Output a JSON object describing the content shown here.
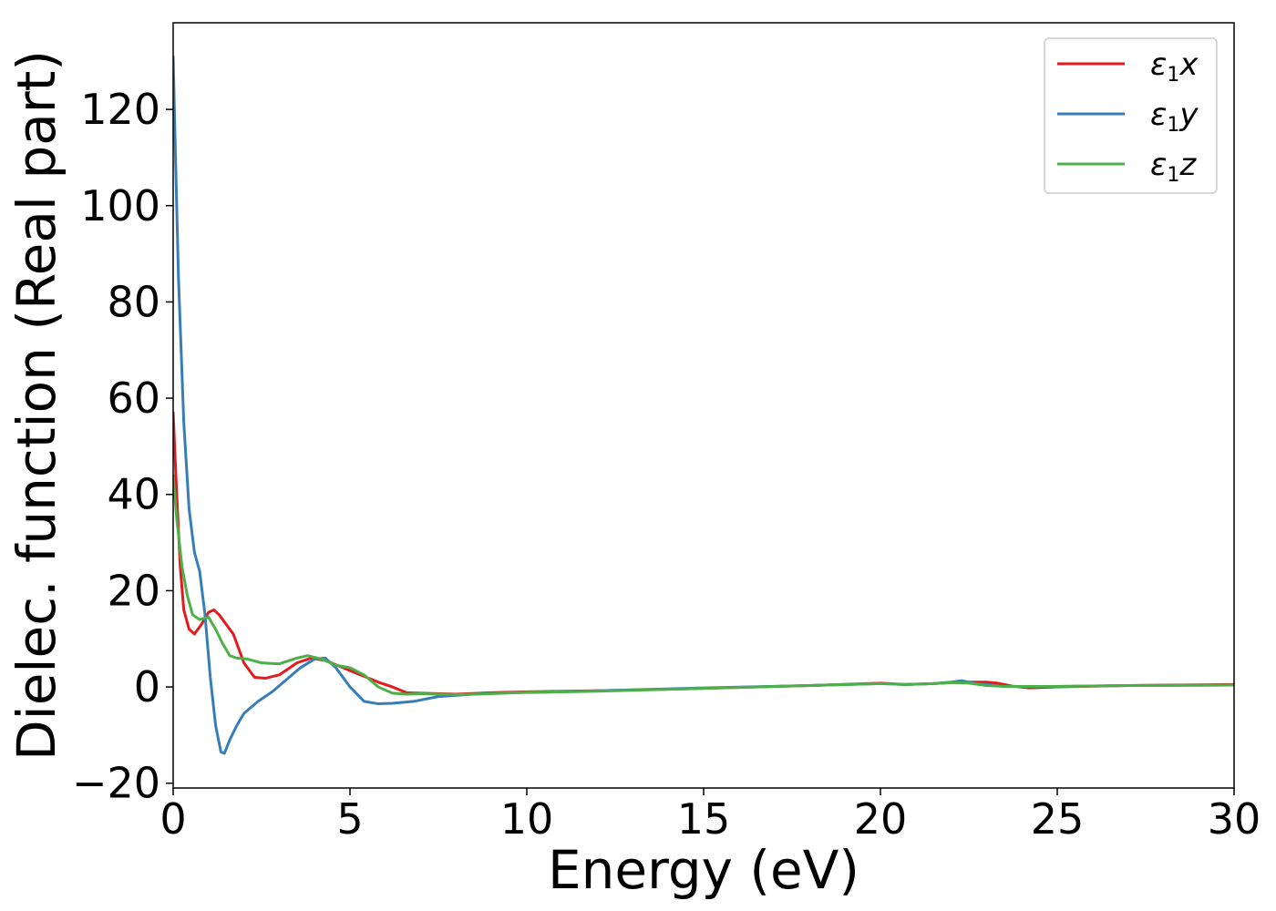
{
  "chart_data": {
    "type": "line",
    "xlabel": "Energy (eV)",
    "ylabel": "Dielec. function (Real part)",
    "xlim": [
      0,
      30
    ],
    "ylim": [
      -21,
      138
    ],
    "xticks": [
      0,
      5,
      10,
      15,
      20,
      25,
      30
    ],
    "yticks": [
      -20,
      0,
      20,
      40,
      60,
      80,
      100,
      120
    ],
    "ytick_labels": [
      "−20",
      "0",
      "20",
      "40",
      "60",
      "80",
      "100",
      "120"
    ],
    "grid": false,
    "legend_position": "top-right",
    "series": [
      {
        "name": "ε₁x",
        "legend": {
          "base": "ε",
          "sub": "1",
          "suffix": "x"
        },
        "color": "#e41a1c",
        "x": [
          0,
          0.1,
          0.2,
          0.3,
          0.45,
          0.6,
          0.8,
          1.0,
          1.15,
          1.3,
          1.45,
          1.7,
          2.0,
          2.3,
          2.6,
          3.0,
          3.5,
          3.9,
          4.3,
          4.8,
          5.3,
          5.8,
          6.2,
          6.6,
          7.0,
          8.0,
          9.0,
          10.0,
          12.0,
          15.0,
          18.0,
          20.0,
          20.7,
          21.5,
          22.0,
          22.5,
          23.0,
          23.3,
          23.7,
          24.2,
          25.0,
          27.0,
          30.0
        ],
        "y": [
          57,
          40,
          25,
          16,
          12,
          11,
          13,
          15.5,
          16,
          15,
          13.5,
          11,
          5,
          2,
          1.8,
          2.5,
          5,
          6,
          5.5,
          4,
          2.5,
          1,
          0,
          -1.2,
          -1.3,
          -1.5,
          -1.2,
          -1.0,
          -0.8,
          -0.3,
          0.3,
          0.8,
          0.5,
          0.7,
          0.9,
          1.0,
          1.0,
          0.8,
          0.2,
          -0.2,
          0.0,
          0.3,
          0.5
        ]
      },
      {
        "name": "ε₁y",
        "legend": {
          "base": "ε",
          "sub": "1",
          "suffix": "y"
        },
        "color": "#377eb8",
        "x": [
          0,
          0.05,
          0.15,
          0.3,
          0.45,
          0.6,
          0.75,
          0.9,
          1.05,
          1.2,
          1.35,
          1.45,
          1.6,
          1.8,
          2.0,
          2.4,
          2.8,
          3.2,
          3.6,
          4.0,
          4.3,
          4.6,
          5.0,
          5.4,
          5.8,
          6.2,
          6.8,
          7.5,
          8.5,
          9.5,
          10.5,
          12.0,
          15.0,
          18.0,
          20.0,
          20.7,
          21.5,
          22.0,
          22.3,
          22.7,
          23.0,
          23.5,
          25.0,
          27.0,
          30.0
        ],
        "y": [
          131,
          115,
          85,
          55,
          37,
          28,
          24,
          15,
          2,
          -8,
          -13.5,
          -13.8,
          -11,
          -8,
          -5.5,
          -3,
          -1,
          1.5,
          4,
          5.8,
          6.0,
          4,
          0,
          -3,
          -3.5,
          -3.4,
          -3,
          -2,
          -1.5,
          -1.2,
          -1.1,
          -0.8,
          -0.2,
          0.3,
          0.7,
          0.5,
          0.7,
          1.0,
          1.3,
          0.7,
          0.5,
          0.1,
          0.1,
          0.3,
          0.4
        ]
      },
      {
        "name": "ε₁z",
        "legend": {
          "base": "ε",
          "sub": "1",
          "suffix": "z"
        },
        "color": "#4daf4a",
        "x": [
          0,
          0.1,
          0.25,
          0.4,
          0.55,
          0.75,
          1.0,
          1.2,
          1.4,
          1.6,
          1.8,
          2.1,
          2.5,
          3.0,
          3.5,
          3.8,
          4.2,
          4.6,
          5.0,
          5.4,
          5.8,
          6.2,
          6.6,
          7.0,
          8.0,
          9.0,
          10.0,
          12.0,
          15.0,
          18.0,
          20.0,
          20.7,
          21.5,
          22.0,
          22.5,
          23.0,
          23.5,
          25.0,
          27.0,
          30.0
        ],
        "y": [
          44,
          35,
          25,
          19,
          15,
          14,
          14.5,
          12,
          9,
          6.5,
          6,
          5.8,
          5.0,
          4.8,
          6.0,
          6.5,
          5.8,
          4.5,
          4,
          2.5,
          0,
          -1.3,
          -1.5,
          -1.4,
          -1.6,
          -1.4,
          -1.1,
          -0.9,
          -0.3,
          0.3,
          0.7,
          0.5,
          0.7,
          0.9,
          0.8,
          0.3,
          0.1,
          0.1,
          0.3,
          0.4
        ]
      }
    ]
  }
}
